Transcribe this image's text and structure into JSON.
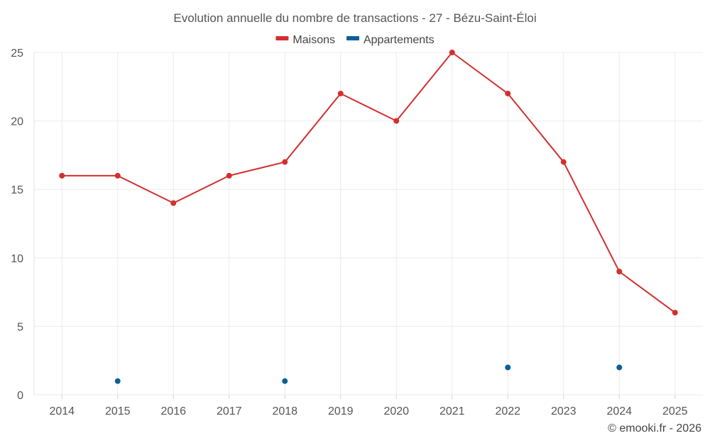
{
  "chart_data": {
    "type": "line",
    "title": "Evolution annuelle du nombre de transactions - 27 - Bézu-Saint-Éloi",
    "x": [
      "2014",
      "2015",
      "2016",
      "2017",
      "2018",
      "2019",
      "2020",
      "2021",
      "2022",
      "2023",
      "2024",
      "2025"
    ],
    "ylim": [
      0,
      25
    ],
    "yticks": [
      0,
      5,
      10,
      15,
      20,
      25
    ],
    "grid": true,
    "legend_position": "top-center",
    "series": [
      {
        "name": "Maisons",
        "color": "#d32f2f",
        "line": true,
        "values": [
          16,
          16,
          14,
          16,
          17,
          22,
          20,
          25,
          22,
          17,
          9,
          6
        ]
      },
      {
        "name": "Appartements",
        "color": "#0a5f99",
        "line": false,
        "values": [
          null,
          1,
          null,
          null,
          1,
          null,
          null,
          null,
          2,
          null,
          2,
          null
        ]
      }
    ],
    "credit": "© emooki.fr - 2026"
  }
}
